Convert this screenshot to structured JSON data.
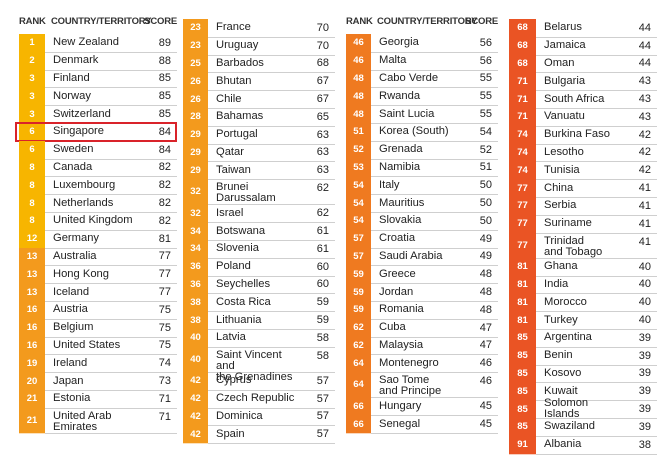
{
  "headers": {
    "rank": "RANK",
    "country": "COUNTRY/TERRITORY",
    "score": "SCORE"
  },
  "colors": {
    "rank_very_clean": "#f7b500",
    "rank_clean": "#f39a1d",
    "rank_mid": "#ef7a20",
    "rank_low": "#ea5424",
    "highlight": "#d9232a"
  },
  "highlighted_country": "Singapore",
  "columns": [
    {
      "rows": [
        {
          "rank": "1",
          "country": "New Zealand",
          "score": "89"
        },
        {
          "rank": "2",
          "country": "Denmark",
          "score": "88"
        },
        {
          "rank": "3",
          "country": "Finland",
          "score": "85"
        },
        {
          "rank": "3",
          "country": "Norway",
          "score": "85"
        },
        {
          "rank": "3",
          "country": "Switzerland",
          "score": "85"
        },
        {
          "rank": "6",
          "country": "Singapore",
          "score": "84"
        },
        {
          "rank": "6",
          "country": "Sweden",
          "score": "84"
        },
        {
          "rank": "8",
          "country": "Canada",
          "score": "82"
        },
        {
          "rank": "8",
          "country": "Luxembourg",
          "score": "82"
        },
        {
          "rank": "8",
          "country": "Netherlands",
          "score": "82"
        },
        {
          "rank": "8",
          "country": "United Kingdom",
          "score": "82"
        },
        {
          "rank": "12",
          "country": "Germany",
          "score": "81"
        },
        {
          "rank": "13",
          "country": "Australia",
          "score": "77"
        },
        {
          "rank": "13",
          "country": "Hong Kong",
          "score": "77"
        },
        {
          "rank": "13",
          "country": "Iceland",
          "score": "77"
        },
        {
          "rank": "16",
          "country": "Austria",
          "score": "75"
        },
        {
          "rank": "16",
          "country": "Belgium",
          "score": "75"
        },
        {
          "rank": "16",
          "country": "United States",
          "score": "75"
        },
        {
          "rank": "19",
          "country": "Ireland",
          "score": "74"
        },
        {
          "rank": "20",
          "country": "Japan",
          "score": "73"
        },
        {
          "rank": "21",
          "country": "Estonia",
          "score": "71"
        },
        {
          "rank": "21",
          "country": "United Arab\nEmirates",
          "score": "71"
        }
      ]
    },
    {
      "rows": [
        {
          "rank": "23",
          "country": "France",
          "score": "70"
        },
        {
          "rank": "23",
          "country": "Uruguay",
          "score": "70"
        },
        {
          "rank": "25",
          "country": "Barbados",
          "score": "68"
        },
        {
          "rank": "26",
          "country": "Bhutan",
          "score": "67"
        },
        {
          "rank": "26",
          "country": "Chile",
          "score": "67"
        },
        {
          "rank": "28",
          "country": "Bahamas",
          "score": "65"
        },
        {
          "rank": "29",
          "country": "Portugal",
          "score": "63"
        },
        {
          "rank": "29",
          "country": "Qatar",
          "score": "63"
        },
        {
          "rank": "29",
          "country": "Taiwan",
          "score": "63"
        },
        {
          "rank": "32",
          "country": "Brunei\nDarussalam",
          "score": "62"
        },
        {
          "rank": "32",
          "country": "Israel",
          "score": "62"
        },
        {
          "rank": "34",
          "country": "Botswana",
          "score": "61"
        },
        {
          "rank": "34",
          "country": "Slovenia",
          "score": "61"
        },
        {
          "rank": "36",
          "country": "Poland",
          "score": "60"
        },
        {
          "rank": "36",
          "country": "Seychelles",
          "score": "60"
        },
        {
          "rank": "38",
          "country": "Costa Rica",
          "score": "59"
        },
        {
          "rank": "38",
          "country": "Lithuania",
          "score": "59"
        },
        {
          "rank": "40",
          "country": "Latvia",
          "score": "58"
        },
        {
          "rank": "40",
          "country": "Saint Vincent and\nthe Grenadines",
          "score": "58"
        },
        {
          "rank": "42",
          "country": "Cyprus",
          "score": "57"
        },
        {
          "rank": "42",
          "country": "Czech Republic",
          "score": "57"
        },
        {
          "rank": "42",
          "country": "Dominica",
          "score": "57"
        },
        {
          "rank": "42",
          "country": "Spain",
          "score": "57"
        }
      ]
    },
    {
      "rows": [
        {
          "rank": "46",
          "country": "Georgia",
          "score": "56"
        },
        {
          "rank": "46",
          "country": "Malta",
          "score": "56"
        },
        {
          "rank": "48",
          "country": "Cabo Verde",
          "score": "55"
        },
        {
          "rank": "48",
          "country": "Rwanda",
          "score": "55"
        },
        {
          "rank": "48",
          "country": "Saint Lucia",
          "score": "55"
        },
        {
          "rank": "51",
          "country": "Korea (South)",
          "score": "54"
        },
        {
          "rank": "52",
          "country": "Grenada",
          "score": "52"
        },
        {
          "rank": "53",
          "country": "Namibia",
          "score": "51"
        },
        {
          "rank": "54",
          "country": "Italy",
          "score": "50"
        },
        {
          "rank": "54",
          "country": "Mauritius",
          "score": "50"
        },
        {
          "rank": "54",
          "country": "Slovakia",
          "score": "50"
        },
        {
          "rank": "57",
          "country": "Croatia",
          "score": "49"
        },
        {
          "rank": "57",
          "country": "Saudi Arabia",
          "score": "49"
        },
        {
          "rank": "59",
          "country": "Greece",
          "score": "48"
        },
        {
          "rank": "59",
          "country": "Jordan",
          "score": "48"
        },
        {
          "rank": "59",
          "country": "Romania",
          "score": "48"
        },
        {
          "rank": "62",
          "country": "Cuba",
          "score": "47"
        },
        {
          "rank": "62",
          "country": "Malaysia",
          "score": "47"
        },
        {
          "rank": "64",
          "country": "Montenegro",
          "score": "46"
        },
        {
          "rank": "64",
          "country": "Sao Tome\nand Principe",
          "score": "46"
        },
        {
          "rank": "66",
          "country": "Hungary",
          "score": "45"
        },
        {
          "rank": "66",
          "country": "Senegal",
          "score": "45"
        }
      ]
    },
    {
      "rows": [
        {
          "rank": "68",
          "country": "Belarus",
          "score": "44"
        },
        {
          "rank": "68",
          "country": "Jamaica",
          "score": "44"
        },
        {
          "rank": "68",
          "country": "Oman",
          "score": "44"
        },
        {
          "rank": "71",
          "country": "Bulgaria",
          "score": "43"
        },
        {
          "rank": "71",
          "country": "South Africa",
          "score": "43"
        },
        {
          "rank": "71",
          "country": "Vanuatu",
          "score": "43"
        },
        {
          "rank": "74",
          "country": "Burkina Faso",
          "score": "42"
        },
        {
          "rank": "74",
          "country": "Lesotho",
          "score": "42"
        },
        {
          "rank": "74",
          "country": "Tunisia",
          "score": "42"
        },
        {
          "rank": "77",
          "country": "China",
          "score": "41"
        },
        {
          "rank": "77",
          "country": "Serbia",
          "score": "41"
        },
        {
          "rank": "77",
          "country": "Suriname",
          "score": "41"
        },
        {
          "rank": "77",
          "country": "Trinidad\nand Tobago",
          "score": "41"
        },
        {
          "rank": "81",
          "country": "Ghana",
          "score": "40"
        },
        {
          "rank": "81",
          "country": "India",
          "score": "40"
        },
        {
          "rank": "81",
          "country": "Morocco",
          "score": "40"
        },
        {
          "rank": "81",
          "country": "Turkey",
          "score": "40"
        },
        {
          "rank": "85",
          "country": "Argentina",
          "score": "39"
        },
        {
          "rank": "85",
          "country": "Benin",
          "score": "39"
        },
        {
          "rank": "85",
          "country": "Kosovo",
          "score": "39"
        },
        {
          "rank": "85",
          "country": "Kuwait",
          "score": "39"
        },
        {
          "rank": "85",
          "country": "Solomon Islands",
          "score": "39"
        },
        {
          "rank": "85",
          "country": "Swaziland",
          "score": "39"
        },
        {
          "rank": "91",
          "country": "Albania",
          "score": "38"
        }
      ]
    }
  ]
}
